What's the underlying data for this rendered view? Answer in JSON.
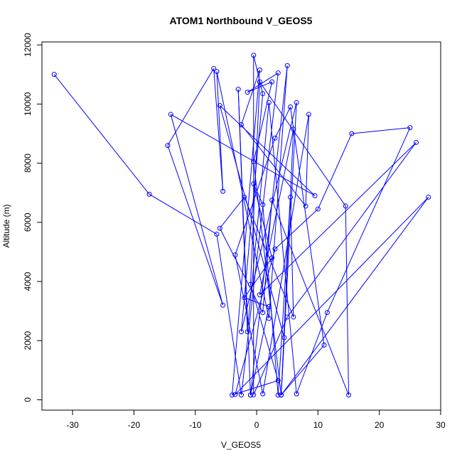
{
  "chart_data": {
    "type": "scatter",
    "title": "ATOM1 Northbound V_GEOS5",
    "xlabel": "V_GEOS5",
    "ylabel": "Altitude (m)",
    "xlim": [
      -35,
      30
    ],
    "ylim": [
      -350,
      12100
    ],
    "x_ticks": [
      -30,
      -20,
      -10,
      0,
      10,
      20,
      30
    ],
    "y_ticks": [
      0,
      2000,
      4000,
      6000,
      8000,
      10000,
      12000
    ],
    "grid": false,
    "legend": "none",
    "series_color": "#0000ff",
    "connect_points": true,
    "points": [
      {
        "x": -33,
        "y": 11000
      },
      {
        "x": -17.5,
        "y": 6950
      },
      {
        "x": -6.5,
        "y": 5600
      },
      {
        "x": -2.5,
        "y": 160
      },
      {
        "x": 3.5,
        "y": 11050
      },
      {
        "x": -1.5,
        "y": 10400
      },
      {
        "x": 2.5,
        "y": 10750
      },
      {
        "x": -0.5,
        "y": 8050
      },
      {
        "x": 4.0,
        "y": 160
      },
      {
        "x": 4.5,
        "y": 2100
      },
      {
        "x": -6.0,
        "y": 9950
      },
      {
        "x": 9.5,
        "y": 6900
      },
      {
        "x": -14.0,
        "y": 9650
      },
      {
        "x": -5.5,
        "y": 3200
      },
      {
        "x": -14.5,
        "y": 8600
      },
      {
        "x": -7.0,
        "y": 11200
      },
      {
        "x": -5.5,
        "y": 7050
      },
      {
        "x": -6.5,
        "y": 11100
      },
      {
        "x": 2.0,
        "y": 2750
      },
      {
        "x": 5.0,
        "y": 11300
      },
      {
        "x": -1.0,
        "y": 160
      },
      {
        "x": -3.0,
        "y": 10500
      },
      {
        "x": -1.5,
        "y": 2300
      },
      {
        "x": 2.0,
        "y": 10050
      },
      {
        "x": 6.5,
        "y": 200
      },
      {
        "x": 11.5,
        "y": 2950
      },
      {
        "x": 25.0,
        "y": 9200
      },
      {
        "x": 15.5,
        "y": 9000
      },
      {
        "x": 10.0,
        "y": 6450
      },
      {
        "x": 3.0,
        "y": 5100
      },
      {
        "x": -3.5,
        "y": 180
      },
      {
        "x": 28.0,
        "y": 6850
      },
      {
        "x": 4.0,
        "y": 160
      },
      {
        "x": 6.5,
        "y": 10050
      },
      {
        "x": -2.5,
        "y": 2300
      },
      {
        "x": 1.0,
        "y": 10350
      },
      {
        "x": -0.5,
        "y": 11650
      },
      {
        "x": -0.5,
        "y": 170
      },
      {
        "x": 5.0,
        "y": 2800
      },
      {
        "x": 26.0,
        "y": 8700
      },
      {
        "x": 0.5,
        "y": 3550
      },
      {
        "x": 6.0,
        "y": 9150
      },
      {
        "x": 4.0,
        "y": 160
      },
      {
        "x": 11.0,
        "y": 1850
      },
      {
        "x": 5.5,
        "y": 9900
      },
      {
        "x": 3.0,
        "y": 8850
      },
      {
        "x": -3.5,
        "y": 4900
      },
      {
        "x": 1.0,
        "y": 200
      },
      {
        "x": 8.5,
        "y": 9650
      },
      {
        "x": 8.0,
        "y": 6550
      },
      {
        "x": -2.5,
        "y": 9300
      },
      {
        "x": 0.5,
        "y": 11150
      },
      {
        "x": -4.0,
        "y": 160
      },
      {
        "x": 3.5,
        "y": 650
      },
      {
        "x": -1.0,
        "y": 3900
      },
      {
        "x": 0.5,
        "y": 10750
      },
      {
        "x": 14.5,
        "y": 6550
      },
      {
        "x": 15.0,
        "y": 160
      },
      {
        "x": 2.5,
        "y": 6750
      },
      {
        "x": 1.0,
        "y": 2950
      },
      {
        "x": -6.0,
        "y": 5800
      },
      {
        "x": -2.0,
        "y": 6850
      },
      {
        "x": 6.0,
        "y": 2800
      },
      {
        "x": 5.5,
        "y": 6850
      },
      {
        "x": 3.5,
        "y": 160
      },
      {
        "x": 1.0,
        "y": 6600
      },
      {
        "x": -0.5,
        "y": 7300
      },
      {
        "x": 2.5,
        "y": 4800
      },
      {
        "x": -2.0,
        "y": 3450
      },
      {
        "x": 2.0,
        "y": 3150
      },
      {
        "x": -1.0,
        "y": 160
      }
    ]
  }
}
